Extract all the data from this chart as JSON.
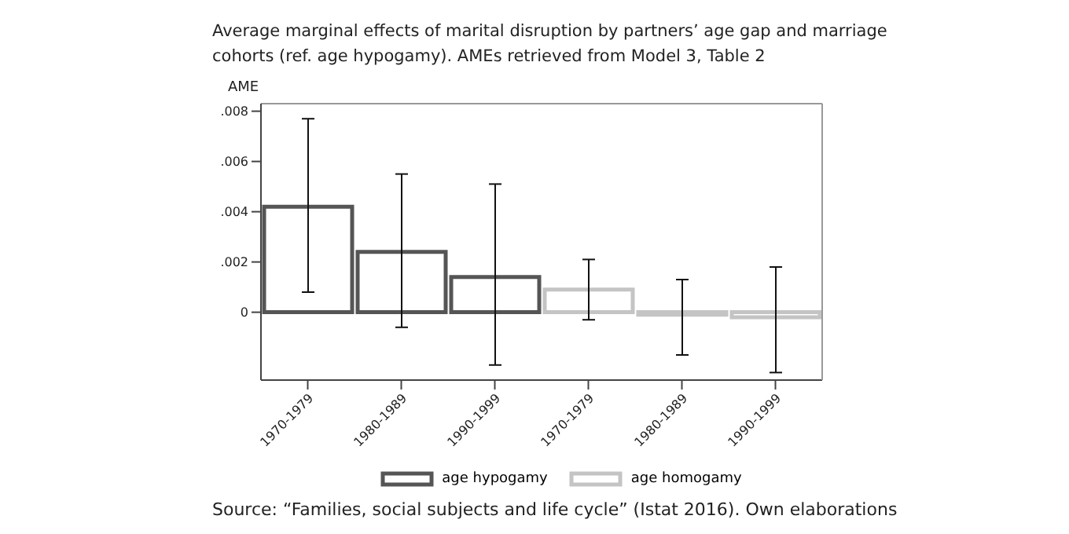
{
  "chart_data": {
    "type": "bar",
    "title": "Average marginal effects of marital disruption by partners’ age gap and marriage cohorts (ref. age hypogamy). AMEs retrieved from Model 3, Table 2",
    "ylabel": "AME",
    "categories": [
      "1970-1979",
      "1980-1989",
      "1990-1999",
      "1970-1979",
      "1980-1989",
      "1990-1999"
    ],
    "series": [
      {
        "name": "age hypogamy",
        "color": "#555555",
        "values": [
          0.0042,
          0.0024,
          0.0014,
          null,
          null,
          null
        ],
        "errors": [
          [
            0.0008,
            0.0077
          ],
          [
            -0.0006,
            0.0055
          ],
          [
            -0.0021,
            0.0051
          ],
          null,
          null,
          null
        ]
      },
      {
        "name": "age homogamy",
        "color": "#c4c4c4",
        "values": [
          null,
          null,
          null,
          0.0009,
          -0.0001,
          -0.0002
        ],
        "errors": [
          null,
          null,
          null,
          [
            -0.0003,
            0.0021
          ],
          [
            -0.0017,
            0.0013
          ],
          [
            -0.0024,
            0.0018
          ]
        ]
      }
    ],
    "ylim": [
      -0.0027,
      0.0083
    ],
    "yticks": [
      0,
      {
        "value": 0.002,
        "label": ".002"
      },
      {
        "value": 0.004,
        "label": ".004"
      },
      {
        "value": 0.006,
        "label": ".006"
      },
      {
        "value": 0.008,
        "label": ".008"
      }
    ],
    "grid": false,
    "legend": "bottom",
    "annotations": [
      "Source: “Families, social subjects and life cycle” (Istat 2016). Own elaborations"
    ]
  }
}
